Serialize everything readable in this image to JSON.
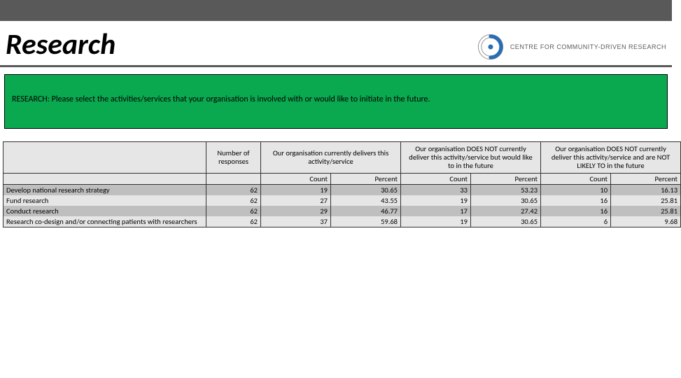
{
  "page": {
    "title": "Research",
    "logo_text": "CENTRE FOR COMMUNITY-DRIVEN RESEARCH",
    "logo_colors": {
      "ring": "#888888",
      "swirl": "#2a6db4"
    }
  },
  "banner": {
    "prompt": "RESEARCH: Please select the activities/services that your organisation is involved with or would like to initiate in the future.",
    "bg_color": "#0aa84f"
  },
  "table": {
    "headers": {
      "number_of_responses": "Number of responses",
      "group_delivers": "Our organisation currently delivers this activity/service",
      "group_would_like": "Our organisation DOES NOT currently deliver this activity/service but would like to in the future",
      "group_not_likely": "Our organisation DOES NOT currently deliver this activity/service and are NOT LIKELY TO in the future",
      "count": "Count",
      "percent": "Percent"
    },
    "rows": [
      {
        "label": "Develop national research strategy",
        "n": 62,
        "c1": 19,
        "p1": "30.65",
        "c2": 33,
        "p2": "53.23",
        "c3": 10,
        "p3": "16.13"
      },
      {
        "label": "Fund research",
        "n": 62,
        "c1": 27,
        "p1": "43.55",
        "c2": 19,
        "p2": "30.65",
        "c3": 16,
        "p3": "25.81"
      },
      {
        "label": "Conduct research",
        "n": 62,
        "c1": 29,
        "p1": "46.77",
        "c2": 17,
        "p2": "27.42",
        "c3": 16,
        "p3": "25.81"
      },
      {
        "label": "Research co-design and/or connecting patients with researchers",
        "n": 62,
        "c1": 37,
        "p1": "59.68",
        "c2": 19,
        "p2": "30.65",
        "c3": 6,
        "p3": "9.68"
      }
    ],
    "row_shades": [
      "dark",
      "light",
      "dark",
      "light"
    ],
    "colors": {
      "light": "#e6e6e6",
      "dark": "#bfbfbf",
      "border": "#333333"
    }
  }
}
